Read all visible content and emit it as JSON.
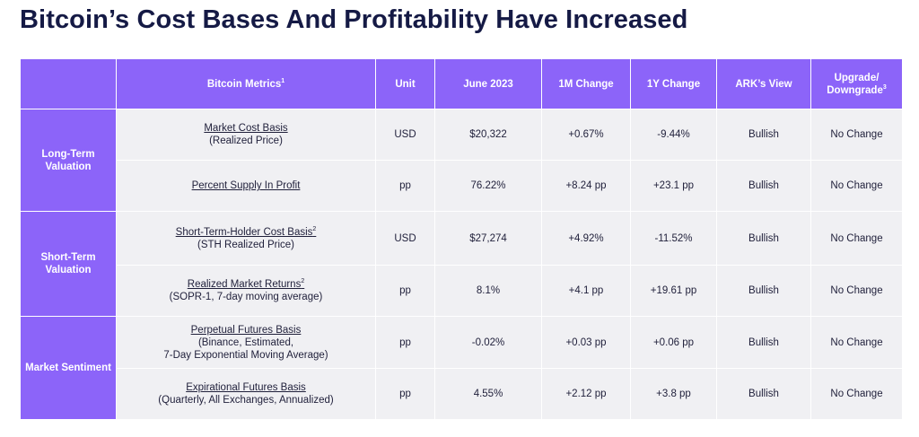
{
  "title": "Bitcoin’s Cost Bases And Profitability Have Increased",
  "headers": {
    "metrics": "Bitcoin Metrics",
    "metrics_sup": "1",
    "unit": "Unit",
    "june": "June 2023",
    "m1": "1M Change",
    "y1": "1Y Change",
    "view": "ARK’s View",
    "upgrade_line1": "Upgrade/",
    "upgrade_line2": "Downgrade",
    "upgrade_sup": "3"
  },
  "groups": [
    "Long-Term Valuation",
    "Short-Term Valuation",
    "Market Sentiment"
  ],
  "rows": [
    {
      "name": "Market Cost Basis",
      "sup": "",
      "desc": [
        "(Realized Price)"
      ],
      "unit": "USD",
      "june": "$20,322",
      "m1": "+0.67%",
      "y1": "-9.44%",
      "view": "Bullish",
      "change": "No Change"
    },
    {
      "name": "Percent Supply In Profit",
      "sup": "",
      "desc": [],
      "unit": "pp",
      "june": "76.22%",
      "m1": "+8.24 pp",
      "y1": "+23.1 pp",
      "view": "Bullish",
      "change": "No Change"
    },
    {
      "name": "Short-Term-Holder Cost Basis",
      "sup": "2",
      "desc": [
        "(STH Realized Price)"
      ],
      "unit": "USD",
      "june": "$27,274",
      "m1": "+4.92%",
      "y1": "-11.52%",
      "view": "Bullish",
      "change": "No Change"
    },
    {
      "name": "Realized Market Returns",
      "sup": "2",
      "desc": [
        "(SOPR-1, 7-day moving average)"
      ],
      "unit": "pp",
      "june": "8.1%",
      "m1": "+4.1 pp",
      "y1": "+19.61 pp",
      "view": "Bullish",
      "change": "No Change"
    },
    {
      "name": "Perpetual Futures Basis",
      "sup": "",
      "desc": [
        "(Binance, Estimated,",
        "7-Day Exponential Moving Average)"
      ],
      "unit": "pp",
      "june": "-0.02%",
      "m1": "+0.03 pp",
      "y1": "+0.06 pp",
      "view": "Bullish",
      "change": "No Change"
    },
    {
      "name": "Expirational Futures Basis",
      "sup": "",
      "desc": [
        "(Quarterly, All Exchanges, Annualized)"
      ],
      "unit": "pp",
      "june": "4.55%",
      "m1": "+2.12 pp",
      "y1": "+3.8 pp",
      "view": "Bullish",
      "change": "No Change"
    }
  ],
  "colors": {
    "header_bg": "#8c64f9",
    "cell_bg": "#f0f0f3",
    "bullish": "#3fcf8e",
    "title": "#151a45"
  }
}
